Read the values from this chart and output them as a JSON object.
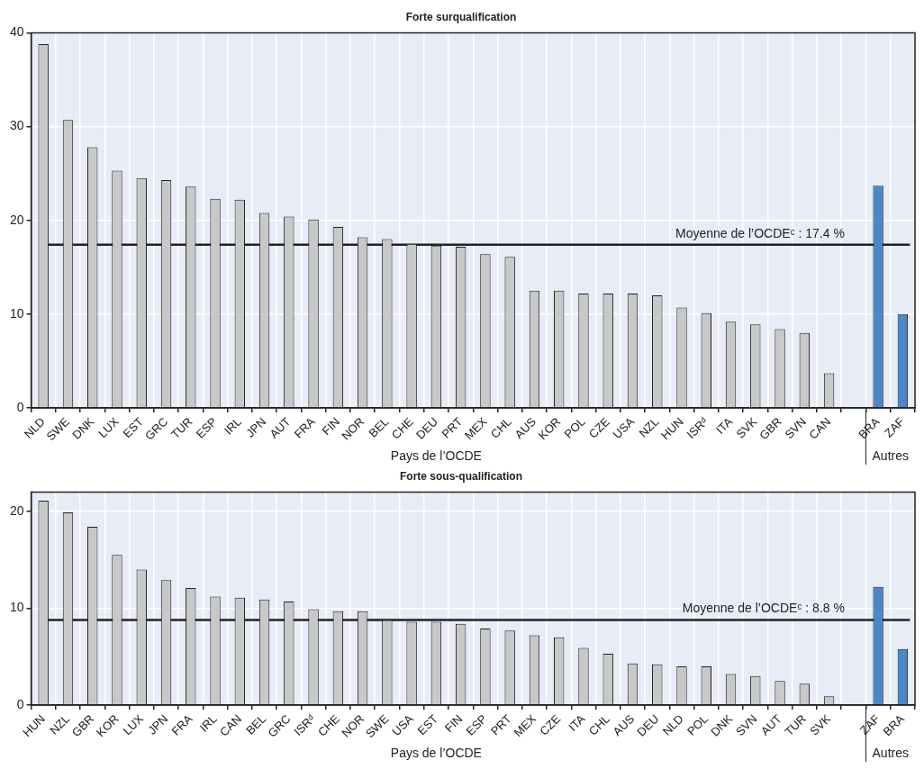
{
  "chart_data": [
    {
      "type": "bar",
      "title": "Forte surqualification",
      "categories": [
        "NLD",
        "SWE",
        "DNK",
        "LUX",
        "EST",
        "GRC",
        "TUR",
        "ESP",
        "IRL",
        "JPN",
        "AUT",
        "FRA",
        "FIN",
        "NOR",
        "BEL",
        "CHE",
        "DEU",
        "PRT",
        "MEX",
        "CHL",
        "AUS",
        "KOR",
        "POL",
        "CZE",
        "USA",
        "NZL",
        "HUN",
        "ISRᵈ",
        "ITA",
        "SVK",
        "GBR",
        "SVN",
        "CAN",
        null,
        "BRA",
        "ZAF"
      ],
      "values": [
        38.8,
        30.7,
        27.8,
        25.3,
        24.5,
        24.3,
        23.6,
        22.3,
        22.2,
        20.8,
        20.4,
        20.1,
        19.3,
        18.2,
        18.0,
        17.5,
        17.3,
        17.2,
        16.4,
        16.1,
        12.5,
        12.5,
        12.2,
        12.2,
        12.2,
        12.0,
        10.7,
        10.1,
        9.2,
        8.9,
        8.4,
        8.0,
        3.7,
        null,
        23.7,
        10.0
      ],
      "colors": [
        "#c8c8c8",
        "#c8c8c8",
        "#c8c8c8",
        "#c8c8c8",
        "#c8c8c8",
        "#c8c8c8",
        "#c8c8c8",
        "#c8c8c8",
        "#c8c8c8",
        "#c8c8c8",
        "#c8c8c8",
        "#c8c8c8",
        "#c8c8c8",
        "#c8c8c8",
        "#c8c8c8",
        "#c8c8c8",
        "#c8c8c8",
        "#c8c8c8",
        "#c8c8c8",
        "#c8c8c8",
        "#c8c8c8",
        "#c8c8c8",
        "#c8c8c8",
        "#c8c8c8",
        "#c8c8c8",
        "#c8c8c8",
        "#c8c8c8",
        "#c8c8c8",
        "#c8c8c8",
        "#c8c8c8",
        "#c8c8c8",
        "#c8c8c8",
        "#c8c8c8",
        "#c8c8c8",
        "#4a86c8",
        "#4a86c8"
      ],
      "ylim": [
        0,
        40
      ],
      "yticks": [
        0,
        10,
        20,
        30,
        40
      ],
      "grid": true,
      "ref_lines": [
        {
          "axis": "y",
          "value": 17.4,
          "label": "Moyenne de l’OCDEᶜ : 17.4 %",
          "color": "#222222"
        }
      ],
      "annotations": [
        "Pays de l’OCDE",
        "Autres"
      ]
    },
    {
      "type": "bar",
      "title": "Forte sous-qualification",
      "categories": [
        "HUN",
        "NZL",
        "GBR",
        "KOR",
        "LUX",
        "JPN",
        "FRA",
        "IRL",
        "CAN",
        "BEL",
        "GRC",
        "ISRᵈ",
        "CHE",
        "NOR",
        "SWE",
        "USA",
        "EST",
        "FIN",
        "ESP",
        "PRT",
        "MEX",
        "CZE",
        "ITA",
        "CHL",
        "AUS",
        "DEU",
        "NLD",
        "POL",
        "DNK",
        "SVN",
        "AUT",
        "TUR",
        "SVK",
        null,
        "ZAF",
        "BRA"
      ],
      "values": [
        21.1,
        19.9,
        18.4,
        15.5,
        14.0,
        12.9,
        12.1,
        11.2,
        11.1,
        10.9,
        10.7,
        9.9,
        9.7,
        9.7,
        8.8,
        8.6,
        8.6,
        8.4,
        7.9,
        7.7,
        7.2,
        7.0,
        5.9,
        5.3,
        4.3,
        4.2,
        4.0,
        4.0,
        3.2,
        3.0,
        2.5,
        2.2,
        0.9,
        null,
        12.2,
        5.8
      ],
      "colors": [
        "#c8c8c8",
        "#c8c8c8",
        "#c8c8c8",
        "#c8c8c8",
        "#c8c8c8",
        "#c8c8c8",
        "#c8c8c8",
        "#c8c8c8",
        "#c8c8c8",
        "#c8c8c8",
        "#c8c8c8",
        "#c8c8c8",
        "#c8c8c8",
        "#c8c8c8",
        "#c8c8c8",
        "#c8c8c8",
        "#c8c8c8",
        "#c8c8c8",
        "#c8c8c8",
        "#c8c8c8",
        "#c8c8c8",
        "#c8c8c8",
        "#c8c8c8",
        "#c8c8c8",
        "#c8c8c8",
        "#c8c8c8",
        "#c8c8c8",
        "#c8c8c8",
        "#c8c8c8",
        "#c8c8c8",
        "#c8c8c8",
        "#c8c8c8",
        "#c8c8c8",
        "#c8c8c8",
        "#4a86c8",
        "#4a86c8"
      ],
      "ylim": [
        0,
        22
      ],
      "yticks": [
        0,
        10,
        20
      ],
      "grid": true,
      "ref_lines": [
        {
          "axis": "y",
          "value": 8.8,
          "label": "Moyenne de l’OCDEᶜ : 8.8 %",
          "color": "#222222"
        }
      ],
      "annotations": [
        "Pays de l’OCDE",
        "Autres"
      ]
    }
  ]
}
